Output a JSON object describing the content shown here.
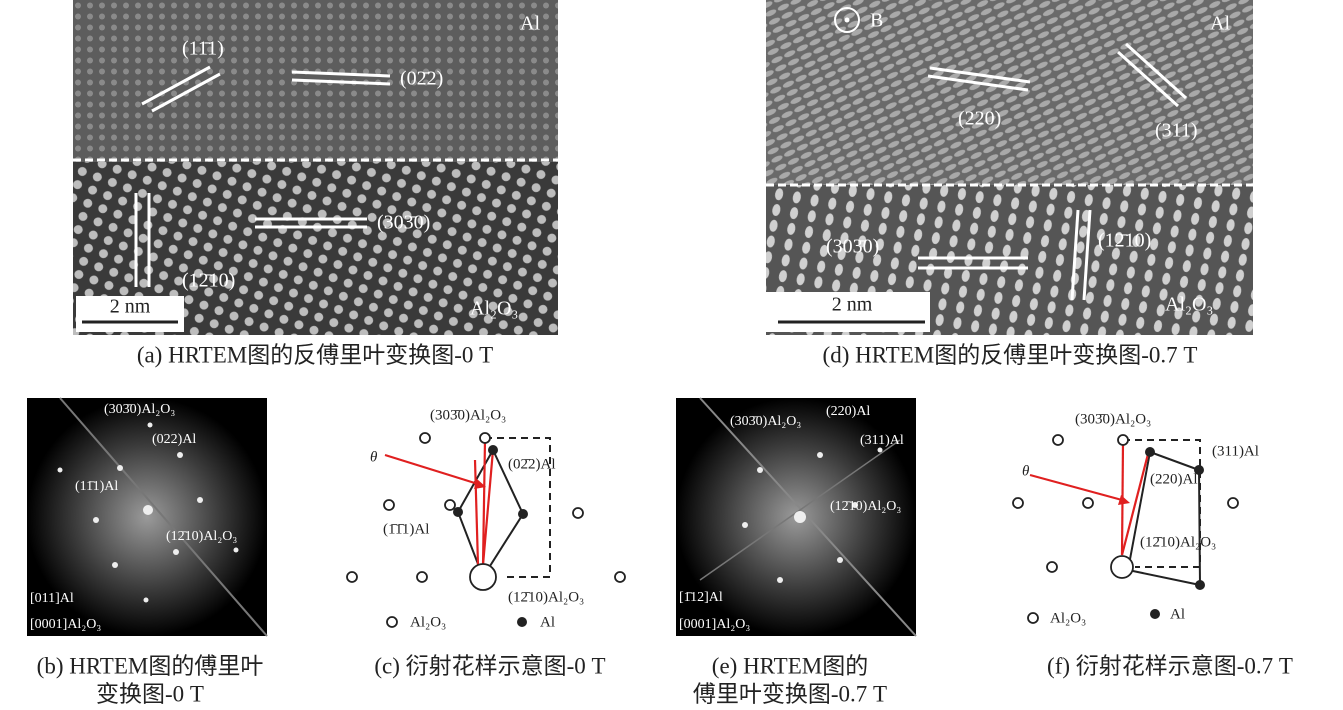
{
  "a": {
    "caption": "(a) HRTEM图的反傅里叶变换图-0 T",
    "labels": [
      "Al",
      "(11̄1)",
      "(02̄2)",
      "(303̄0)",
      "(12̄10)",
      "Al₂O₃"
    ],
    "scale_bar": "2 nm"
  },
  "b": {
    "caption": [
      "(b) HRTEM图的傅里叶",
      "变换图-0 T"
    ],
    "labels": [
      "(303̄0)Al₂O₃",
      "(022)Al",
      "(11̄1)Al",
      "(12̄10)Al₂O₃",
      "[011]Al",
      "[0001]Al₂O₃"
    ]
  },
  "c": {
    "caption": "(c) 衍射花样示意图-0 T",
    "labels": [
      "(303̄0)Al₂O₃",
      "θ",
      "(02̄2)Al",
      "(1̄1̄1)Al",
      "(12̄10)Al₂O₃"
    ],
    "legend": [
      "Al₂O₃",
      "Al"
    ]
  },
  "d": {
    "caption": "(d) HRTEM图的反傅里叶变换图-0.7 T",
    "labels": [
      "B",
      "Al",
      "(220)",
      "(311)",
      "(303̄0)",
      "(12̄10)",
      "Al₂O₃"
    ],
    "scale_bar": "2 nm"
  },
  "e": {
    "caption": [
      "(e) HRTEM图的",
      "傅里叶变换图-0.7 T"
    ],
    "labels": [
      "(303̄0)Al₂O₃",
      "(220)Al",
      "(311)Al",
      "(12̄10)Al₂O₃",
      "[1̄12]Al",
      "[0001]Al₂O₃"
    ]
  },
  "f": {
    "caption": "(f) 衍射花样示意图-0.7 T",
    "labels": [
      "(303̄0)Al₂O₃",
      "θ",
      "(311)Al",
      "(220)Al",
      "(12̄10)Al₂O₃"
    ],
    "legend": [
      "Al₂O₃",
      "Al"
    ]
  }
}
